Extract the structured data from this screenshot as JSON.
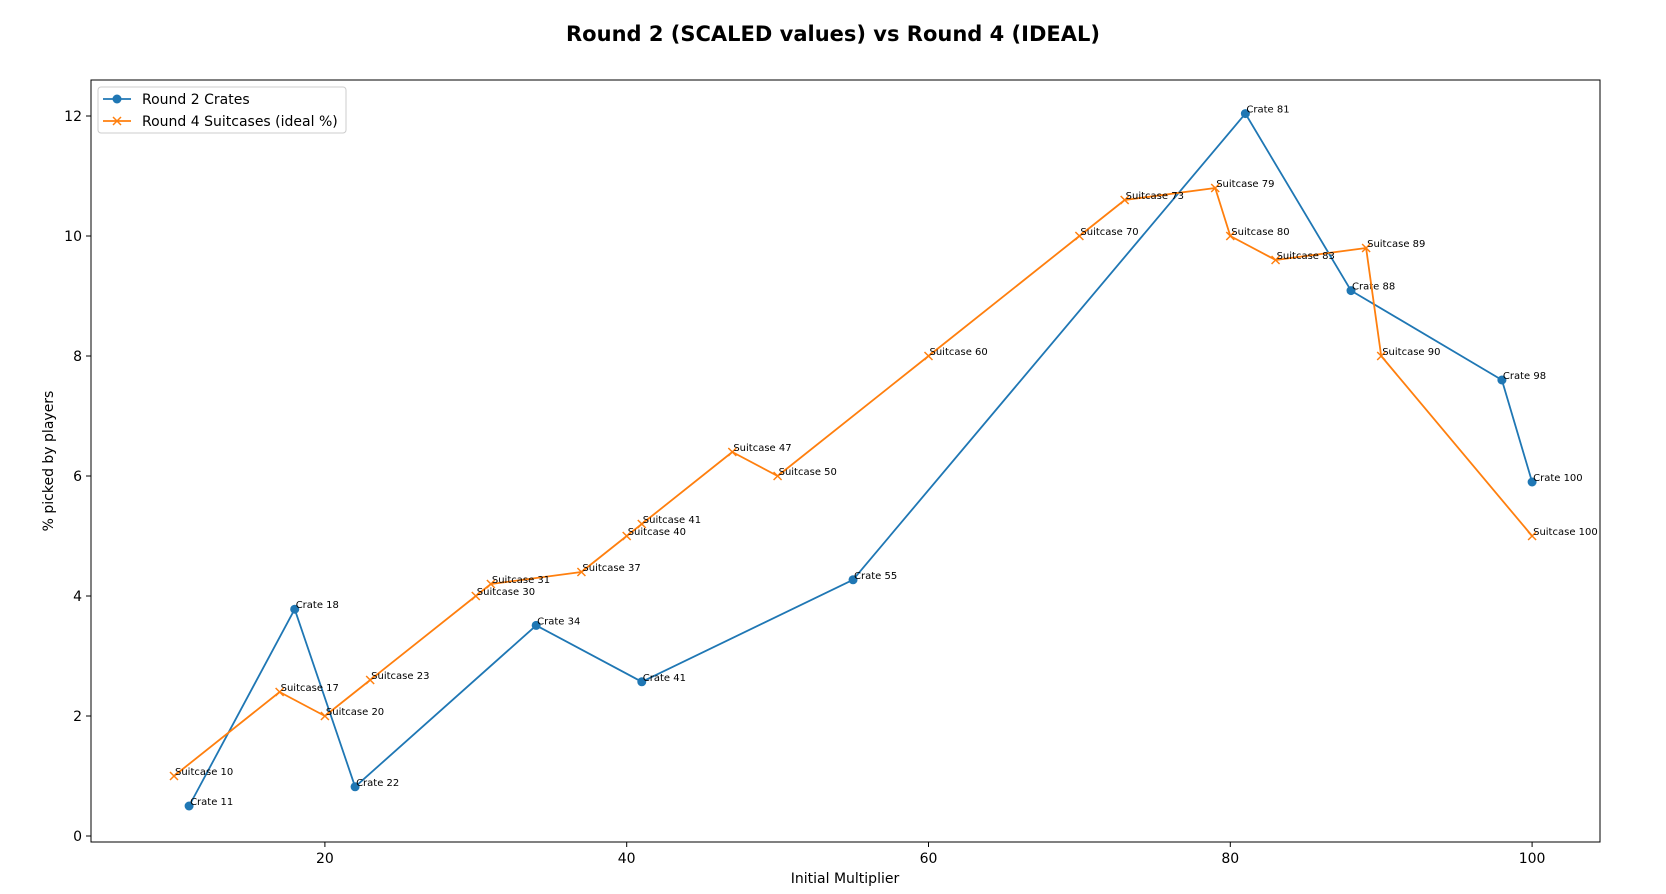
{
  "chart_data": {
    "type": "line",
    "title": "Round 2 (SCALED values) vs Round 4 (IDEAL)",
    "xlabel": "Initial Multiplier",
    "ylabel": "% picked by players",
    "xlim": [
      4.5,
      104.5
    ],
    "ylim": [
      -0.1,
      12.6
    ],
    "xticks": [
      20,
      40,
      60,
      80,
      100
    ],
    "yticks": [
      0,
      2,
      4,
      6,
      8,
      10,
      12
    ],
    "grid": false,
    "legend_position": "top-left",
    "series": [
      {
        "name": "Round 2 Crates",
        "color": "#1f77b4",
        "marker": "circle",
        "points": [
          {
            "x": 11,
            "y": 0.5,
            "label": "Crate 11"
          },
          {
            "x": 18,
            "y": 3.78,
            "label": "Crate 18"
          },
          {
            "x": 22,
            "y": 0.82,
            "label": "Crate 22"
          },
          {
            "x": 34,
            "y": 3.51,
            "label": "Crate 34"
          },
          {
            "x": 41,
            "y": 2.57,
            "label": "Crate 41"
          },
          {
            "x": 55,
            "y": 4.27,
            "label": "Crate 55"
          },
          {
            "x": 81,
            "y": 12.04,
            "label": "Crate 81"
          },
          {
            "x": 88,
            "y": 9.09,
            "label": "Crate 88"
          },
          {
            "x": 98,
            "y": 7.6,
            "label": "Crate 98"
          },
          {
            "x": 100,
            "y": 5.9,
            "label": "Crate 100"
          }
        ]
      },
      {
        "name": "Round 4 Suitcases (ideal %)",
        "color": "#ff7f0e",
        "marker": "x",
        "points": [
          {
            "x": 10,
            "y": 1.0,
            "label": "Suitcase 10"
          },
          {
            "x": 17,
            "y": 2.4,
            "label": "Suitcase 17"
          },
          {
            "x": 20,
            "y": 2.0,
            "label": "Suitcase 20"
          },
          {
            "x": 23,
            "y": 2.6,
            "label": "Suitcase 23"
          },
          {
            "x": 30,
            "y": 4.0,
            "label": "Suitcase 30"
          },
          {
            "x": 31,
            "y": 4.2,
            "label": "Suitcase 31"
          },
          {
            "x": 37,
            "y": 4.4,
            "label": "Suitcase 37"
          },
          {
            "x": 40,
            "y": 5.0,
            "label": "Suitcase 40"
          },
          {
            "x": 41,
            "y": 5.2,
            "label": "Suitcase 41"
          },
          {
            "x": 47,
            "y": 6.4,
            "label": "Suitcase 47"
          },
          {
            "x": 50,
            "y": 6.0,
            "label": "Suitcase 50"
          },
          {
            "x": 60,
            "y": 8.0,
            "label": "Suitcase 60"
          },
          {
            "x": 70,
            "y": 10.0,
            "label": "Suitcase 70"
          },
          {
            "x": 73,
            "y": 10.6,
            "label": "Suitcase 73"
          },
          {
            "x": 79,
            "y": 10.8,
            "label": "Suitcase 79"
          },
          {
            "x": 80,
            "y": 10.0,
            "label": "Suitcase 80"
          },
          {
            "x": 83,
            "y": 9.6,
            "label": "Suitcase 83"
          },
          {
            "x": 89,
            "y": 9.8,
            "label": "Suitcase 89"
          },
          {
            "x": 90,
            "y": 8.0,
            "label": "Suitcase 90"
          },
          {
            "x": 100,
            "y": 5.0,
            "label": "Suitcase 100"
          }
        ]
      }
    ]
  }
}
